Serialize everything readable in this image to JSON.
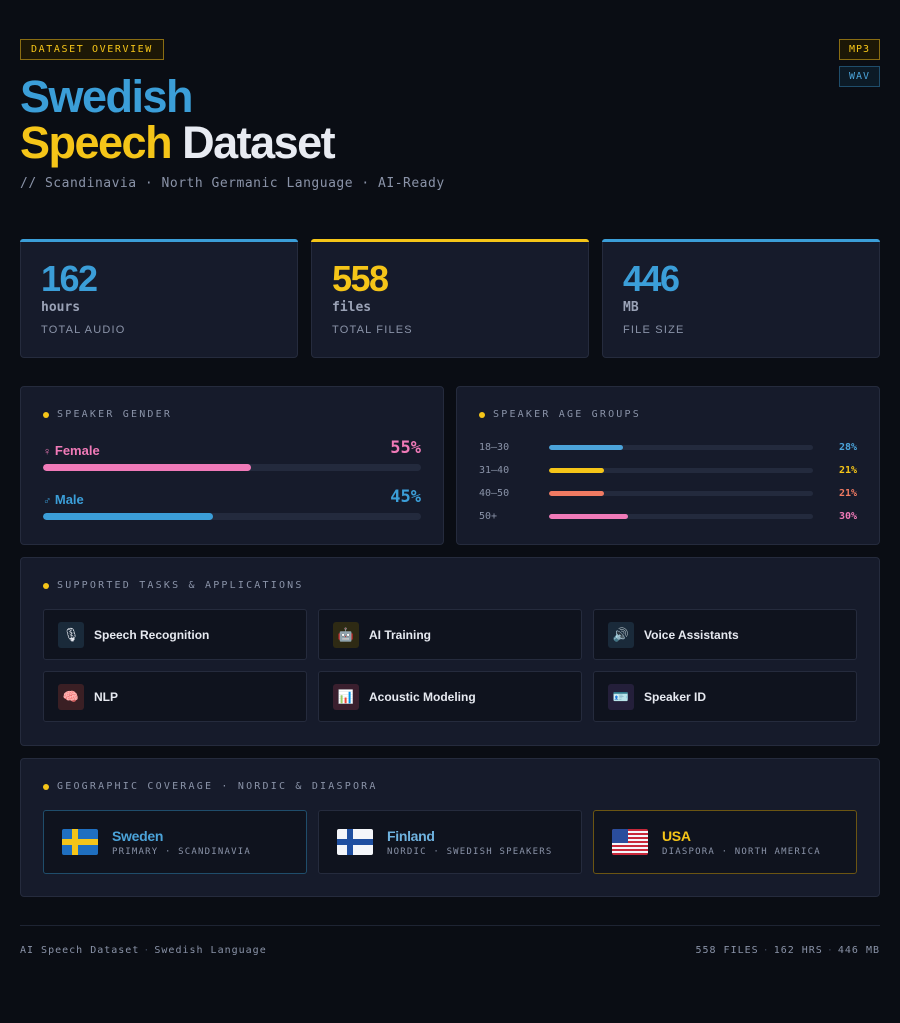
{
  "header": {
    "badge": "DATASET OVERVIEW",
    "formats": [
      "MP3",
      "WAV"
    ],
    "title_line1": "Swedish",
    "title_word2": "Speech",
    "title_word3": "Dataset",
    "subtitle": "// Scandinavia · North Germanic Language · AI-Ready"
  },
  "stats": [
    {
      "value": "162",
      "unit": "hours",
      "label": "TOTAL AUDIO",
      "accent": "#3b9ed8"
    },
    {
      "value": "558",
      "unit": "files",
      "label": "TOTAL FILES",
      "accent": "#f5c518"
    },
    {
      "value": "446",
      "unit": "MB",
      "label": "FILE SIZE",
      "accent": "#3b9ed8"
    }
  ],
  "gender": {
    "title": "SPEAKER GENDER",
    "items": [
      {
        "symbol": "♀",
        "label": "Female",
        "pct": "55%",
        "value": 55,
        "color": "#f07ab8"
      },
      {
        "symbol": "♂",
        "label": "Male",
        "pct": "45%",
        "value": 45,
        "color": "#3b9ed8"
      }
    ]
  },
  "age": {
    "title": "SPEAKER AGE GROUPS",
    "items": [
      {
        "label": "18–30",
        "pct": "28%",
        "value": 28,
        "color": "#4ba3d9"
      },
      {
        "label": "31–40",
        "pct": "21%",
        "value": 21,
        "color": "#f5c518"
      },
      {
        "label": "40–50",
        "pct": "21%",
        "value": 21,
        "color": "#f07a62"
      },
      {
        "label": "50+",
        "pct": "30%",
        "value": 30,
        "color": "#f07ab8"
      }
    ]
  },
  "tasks": {
    "title": "SUPPORTED TASKS & APPLICATIONS",
    "items": [
      {
        "label": "Speech Recognition",
        "icon": "microphone-icon",
        "glyph": "🎙",
        "bg": "#1a2a3a"
      },
      {
        "label": "AI Training",
        "icon": "robot-icon",
        "glyph": "🤖",
        "bg": "#2e2a14"
      },
      {
        "label": "Voice Assistants",
        "icon": "speaker-icon",
        "glyph": "🔊",
        "bg": "#1a2a3a"
      },
      {
        "label": "NLP",
        "icon": "brain-icon",
        "glyph": "🧠",
        "bg": "#3a1f24"
      },
      {
        "label": "Acoustic Modeling",
        "icon": "bar-chart-icon",
        "glyph": "📊",
        "bg": "#3a1f2e"
      },
      {
        "label": "Speaker ID",
        "icon": "id-card-icon",
        "glyph": "🪪",
        "bg": "#241f3a"
      }
    ]
  },
  "geo": {
    "title": "GEOGRAPHIC COVERAGE · NORDIC & DIASPORA",
    "items": [
      {
        "name": "Sweden",
        "sub": "PRIMARY · SCANDINAVIA",
        "flag": "sweden-flag-icon",
        "color": "#4ba3d9"
      },
      {
        "name": "Finland",
        "sub": "NORDIC · SWEDISH SPEAKERS",
        "flag": "finland-flag-icon",
        "color": "#6fb3e0"
      },
      {
        "name": "USA",
        "sub": "DIASPORA · NORTH AMERICA",
        "flag": "usa-flag-icon",
        "color": "#f5c518"
      }
    ]
  },
  "footer": {
    "left_a": "AI Speech Dataset",
    "left_b": "Swedish Language",
    "right_a": "558 FILES",
    "right_b": "162 HRS",
    "right_c": "446 MB"
  }
}
